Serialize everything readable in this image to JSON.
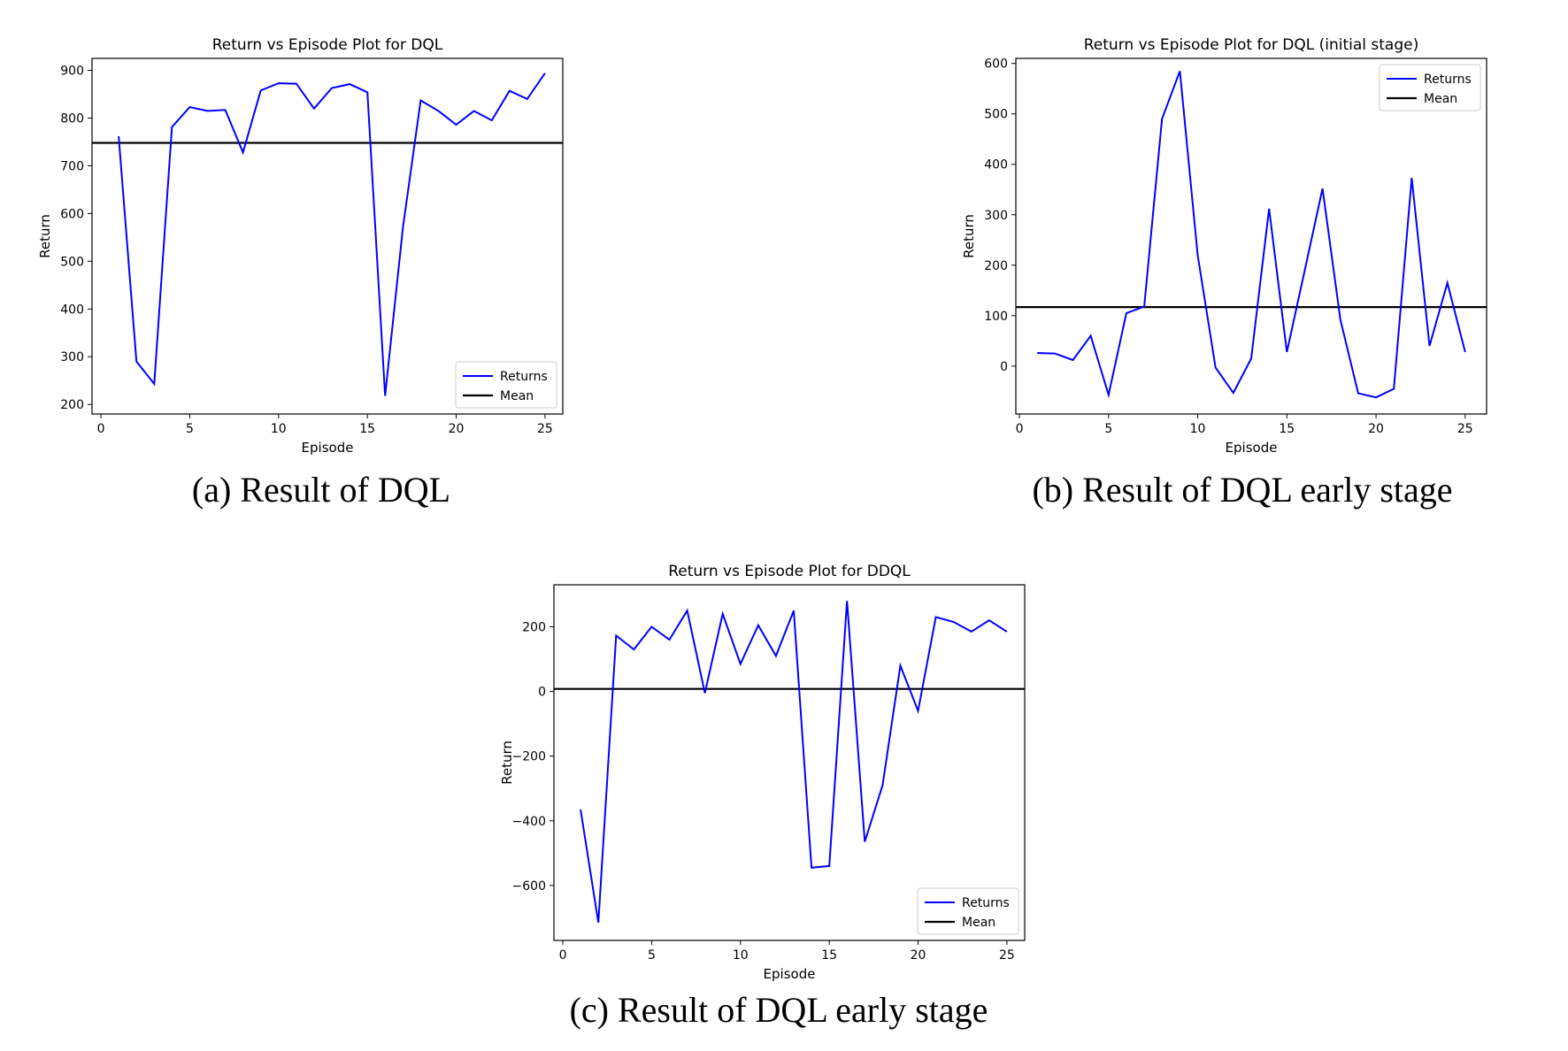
{
  "chart_data": [
    {
      "id": "a",
      "type": "line",
      "title": "Return vs Episode Plot for DQL",
      "xlabel": "Episode",
      "ylabel": "Return",
      "caption": "(a) Result of DQL",
      "xlim": [
        -0.5,
        26
      ],
      "ylim": [
        180,
        925
      ],
      "xticks": [
        0,
        5,
        10,
        15,
        20,
        25
      ],
      "yticks": [
        200,
        300,
        400,
        500,
        600,
        700,
        800,
        900
      ],
      "legend": {
        "position": "lower-right",
        "entries": [
          "Returns",
          "Mean"
        ]
      },
      "mean": 748,
      "series": [
        {
          "name": "Returns",
          "color": "#0000ff",
          "x": [
            1,
            2,
            3,
            4,
            5,
            6,
            7,
            8,
            9,
            10,
            11,
            12,
            13,
            14,
            15,
            16,
            17,
            18,
            19,
            20,
            21,
            22,
            23,
            24,
            25
          ],
          "y": [
            762,
            290,
            243,
            781,
            823,
            815,
            817,
            728,
            858,
            873,
            872,
            820,
            863,
            871,
            854,
            218,
            570,
            837,
            815,
            786,
            815,
            795,
            857,
            840,
            894
          ]
        }
      ]
    },
    {
      "id": "b",
      "type": "line",
      "title": "Return vs Episode Plot for DQL (initial stage)",
      "xlabel": "Episode",
      "ylabel": "Return",
      "caption": "(b) Result of DQL early stage",
      "xlim": [
        -0.2,
        26.2
      ],
      "ylim": [
        -95,
        610
      ],
      "xticks": [
        0,
        5,
        10,
        15,
        20,
        25
      ],
      "yticks": [
        0,
        100,
        200,
        300,
        400,
        500,
        600
      ],
      "legend": {
        "position": "upper-right",
        "entries": [
          "Returns",
          "Mean"
        ]
      },
      "mean": 117,
      "series": [
        {
          "name": "Returns",
          "color": "#0000ff",
          "x": [
            1,
            2,
            3,
            4,
            5,
            6,
            7,
            8,
            9,
            10,
            11,
            12,
            13,
            14,
            15,
            16,
            17,
            18,
            19,
            20,
            21,
            22,
            23,
            24,
            25
          ],
          "y": [
            26,
            25,
            12,
            60,
            -57,
            105,
            118,
            490,
            585,
            220,
            -3,
            -53,
            15,
            312,
            28,
            190,
            352,
            92,
            -54,
            -62,
            -45,
            373,
            40,
            165,
            28
          ]
        }
      ]
    },
    {
      "id": "c",
      "type": "line",
      "title": "Return vs Episode Plot for DDQL",
      "xlabel": "Episode",
      "ylabel": "Return",
      "caption": "(c) Result of DQL early stage",
      "xlim": [
        -0.5,
        26
      ],
      "ylim": [
        -770,
        330
      ],
      "xticks": [
        0,
        5,
        10,
        15,
        20,
        25
      ],
      "yticks": [
        -600,
        -400,
        -200,
        0,
        200
      ],
      "legend": {
        "position": "lower-right",
        "entries": [
          "Returns",
          "Mean"
        ]
      },
      "mean": 8,
      "series": [
        {
          "name": "Returns",
          "color": "#0000ff",
          "x": [
            1,
            2,
            3,
            4,
            5,
            6,
            7,
            8,
            9,
            10,
            11,
            12,
            13,
            14,
            15,
            16,
            17,
            18,
            19,
            20,
            21,
            22,
            23,
            24,
            25
          ],
          "y": [
            -365,
            -715,
            173,
            130,
            200,
            160,
            250,
            -5,
            240,
            85,
            205,
            110,
            250,
            -545,
            -540,
            280,
            -465,
            -290,
            80,
            -60,
            230,
            215,
            185,
            220,
            185
          ]
        }
      ]
    }
  ],
  "colors": {
    "returns": "#0000ff",
    "mean": "#000000",
    "axes": "#000000",
    "legend_border": "#cccccc"
  }
}
